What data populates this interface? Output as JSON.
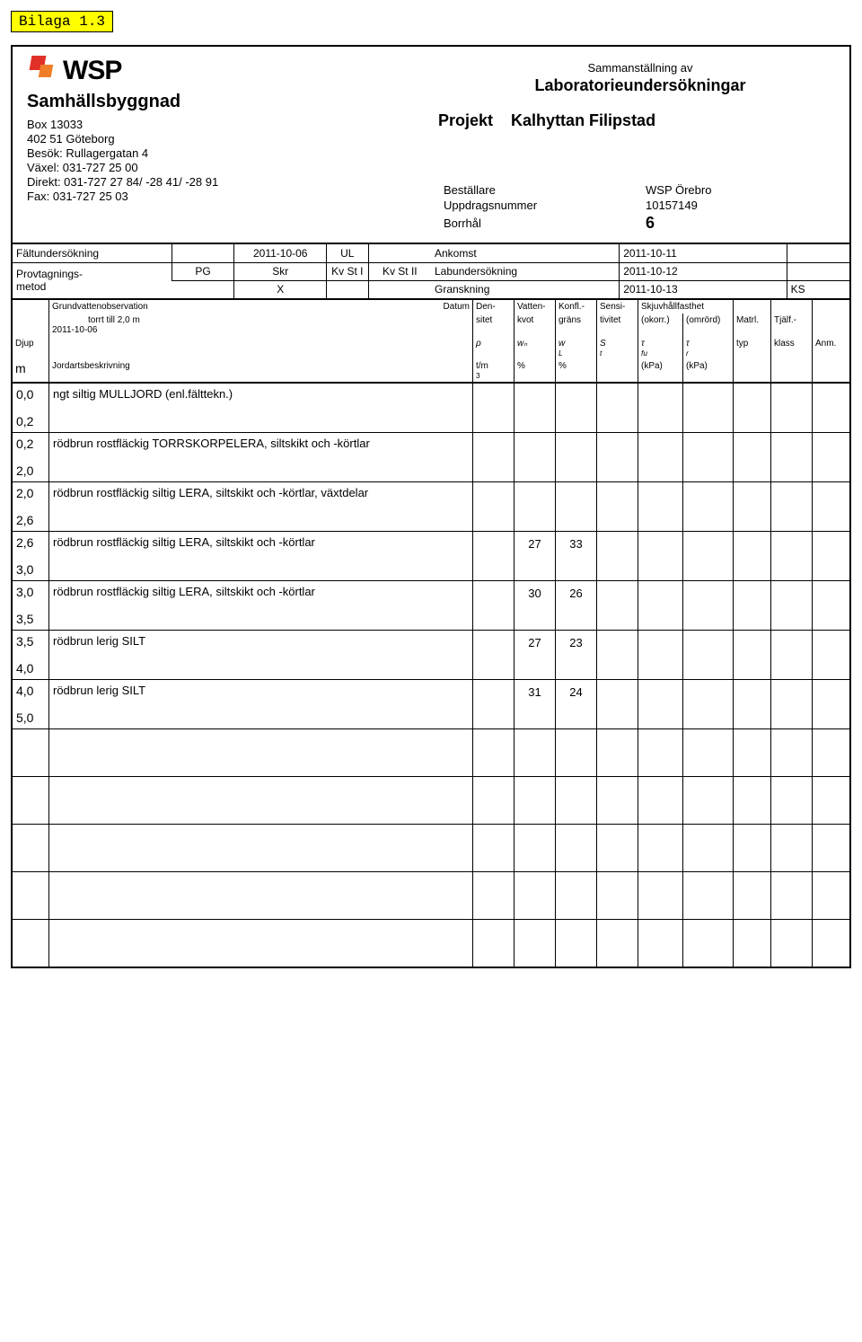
{
  "tag": "Bilaga 1.3",
  "logo_text": "WSP",
  "logo_colors": {
    "red": "#e03028",
    "orange": "#f07d28"
  },
  "company": "Samhällsbyggnad",
  "address": {
    "box": "Box 13033",
    "city": "402 51 Göteborg",
    "visit": "Besök: Rullagergatan 4",
    "switch": "Växel: 031-727 25 00",
    "direct": "Direkt: 031-727 27 84/ -28 41/ -28 91",
    "fax": "Fax: 031-727 25 03"
  },
  "header_right": {
    "line1": "Sammanställning av",
    "line2": "Laboratorieundersökningar",
    "project_label": "Projekt",
    "project_value": "Kalhyttan Filipstad"
  },
  "kv": {
    "bestallare_label": "Beställare",
    "bestallare_value": "WSP Örebro",
    "uppdrag_label": "Uppdragsnummer",
    "uppdrag_value": "10157149",
    "borrhal_label": "Borrhål",
    "borrhal_value": "6"
  },
  "mid_left": {
    "falt_label": "Fältundersökning",
    "falt_date": "2011-10-06",
    "falt_code": "UL",
    "prov_label": "Provtagnings-\nmetod",
    "pg": "PG",
    "skr": "Skr",
    "kv1": "Kv St I",
    "kv2": "Kv St II",
    "skr_mark": "X"
  },
  "mid_right": {
    "ankomst_label": "Ankomst",
    "ankomst_value": "2011-10-11",
    "lab_label": "Labundersökning",
    "lab_value": "2011-10-12",
    "gransk_label": "Granskning",
    "gransk_value": "2011-10-13",
    "gransk_sign": "KS"
  },
  "gvo": {
    "label": "Grundvattenobservation",
    "note": "torrt till 2,0 m",
    "datum_label": "Datum",
    "datum_value": "2011-10-06"
  },
  "cols": {
    "djup": "Djup",
    "djup_unit": "m",
    "jord": "Jordartsbeskrivning",
    "den1": "Den-",
    "den2": "sitet",
    "den_sym": "ρ",
    "den_unit": "t/m³",
    "vat1": "Vatten-",
    "vat2": "kvot",
    "vat_sym": "wₙ",
    "vat_unit": "%",
    "konf1": "Konfl.-",
    "konf2": "gräns",
    "konf_sym": "w_L",
    "konf_unit": "%",
    "sens1": "Sensi-",
    "sens2": "tivitet",
    "sens_sym": "Sₜ",
    "skjuv": "Skjuvhållfasthet",
    "okorr": "(okorr.)",
    "tau_fu": "τ_fu",
    "kpa": "(kPa)",
    "omrord": "(omrörd)",
    "tau_r": "τ_r",
    "matrl": "Matrl.",
    "typ": "typ",
    "tjalf": "Tjälf.-",
    "klass": "klass",
    "anm": "Anm."
  },
  "rows": [
    {
      "d1": "0,0",
      "d2": "0,2",
      "desc": "ngt siltig MULLJORD (enl.fälttekn.)",
      "wn": "",
      "wl": ""
    },
    {
      "d1": "0,2",
      "d2": "2,0",
      "desc": "rödbrun rostfläckig TORRSKORPELERA, siltskikt och -körtlar",
      "wn": "",
      "wl": ""
    },
    {
      "d1": "2,0",
      "d2": "2,6",
      "desc": "rödbrun rostfläckig siltig LERA, siltskikt och -körtlar, växtdelar",
      "wn": "",
      "wl": ""
    },
    {
      "d1": "2,6",
      "d2": "3,0",
      "desc": "rödbrun rostfläckig siltig LERA, siltskikt och -körtlar",
      "wn": "27",
      "wl": "33"
    },
    {
      "d1": "3,0",
      "d2": "3,5",
      "desc": "rödbrun rostfläckig siltig LERA, siltskikt och -körtlar",
      "wn": "30",
      "wl": "26"
    },
    {
      "d1": "3,5",
      "d2": "4,0",
      "desc": "rödbrun lerig SILT",
      "wn": "27",
      "wl": "23"
    },
    {
      "d1": "4,0",
      "d2": "5,0",
      "desc": "rödbrun lerig SILT",
      "wn": "31",
      "wl": "24"
    }
  ],
  "empty_rows": 5
}
